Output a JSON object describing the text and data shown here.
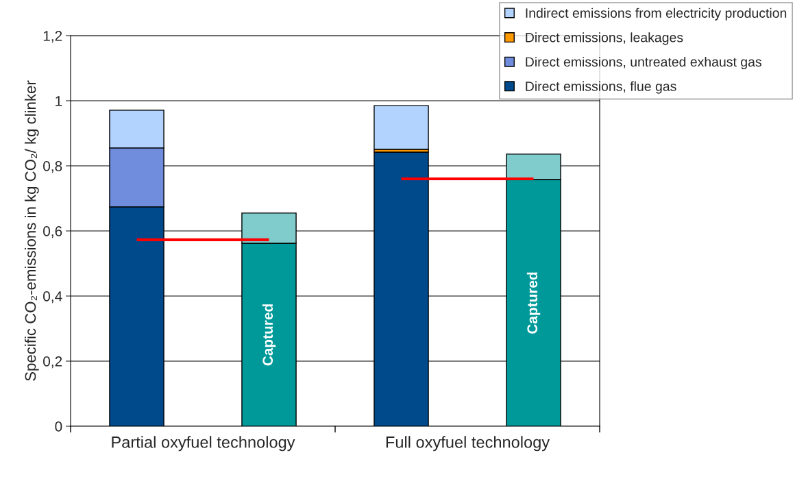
{
  "chart_data": {
    "type": "bar",
    "stacked": true,
    "ylabel": "Specific CO₂-emissions in kg CO₂/ kg clinker",
    "categories": [
      null,
      null,
      null,
      null
    ],
    "annotations": [
      "Partial oxyfuel technology",
      "Full oxyfuel technology"
    ],
    "series": [
      {
        "name": "Direct emissions, flue gas",
        "color": "#004a8c",
        "values": [
          0.674,
          null,
          0.842,
          null
        ]
      },
      {
        "name": "Direct emissions, untreated exhaust gas",
        "color": "#6f8ddc",
        "values": [
          0.181,
          null,
          null,
          null
        ]
      },
      {
        "name": "Direct emissions, leakages",
        "color": "#ff9900",
        "values": [
          null,
          null,
          0.009,
          null
        ]
      },
      {
        "name": "Indirect emissions from electricity production",
        "color": "#b3d3ff",
        "values": [
          0.116,
          null,
          0.134,
          null
        ]
      },
      {
        "color": "#009999",
        "values": [
          null,
          0.562,
          null,
          0.758
        ],
        "value_labels": [
          null,
          "Captured",
          null,
          "Captured"
        ]
      },
      {
        "color": "#80cccc",
        "values": [
          null,
          0.093,
          null,
          0.078
        ]
      },
      {
        "type": "line",
        "color": "#ff0000",
        "values": [
          0.573,
          0.573,
          null,
          null
        ]
      },
      {
        "type": "line",
        "color": "#ff0000",
        "values": [
          null,
          null,
          0.76,
          0.76
        ]
      }
    ],
    "ylim": [
      0,
      1.2
    ],
    "yticks": [
      0,
      {
        "value": 0.2,
        "label": "0,2"
      },
      {
        "value": 0.4,
        "label": "0,4"
      },
      {
        "value": 0.6,
        "label": "0,6"
      },
      {
        "value": 0.8,
        "label": "0,8"
      },
      1,
      {
        "value": 1.2,
        "label": "1,2"
      }
    ],
    "grid": "y",
    "legend": "top right"
  }
}
